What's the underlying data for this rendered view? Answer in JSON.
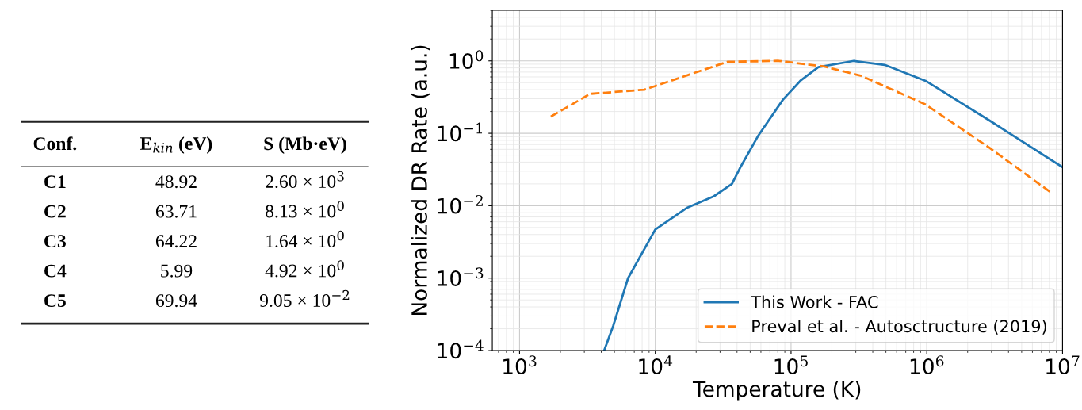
{
  "chart_data": [
    {
      "type": "other",
      "annotations": [
        "Conf.",
        "E$_{kin}$ (eV)",
        "S (Mb·eV)",
        "C1",
        "48.92",
        "2.60 × 10$^{3}$",
        "C2",
        "63.71",
        "8.13 × 10$^{0}$",
        "C3",
        "64.22",
        "1.64 × 10$^{0}$",
        "C4",
        "5.99",
        "4.92 × 10$^{0}$",
        "C5",
        "69.94",
        "9.05 × 10$^{−2}$"
      ]
    },
    {
      "type": "line",
      "xlabel": "Temperature (K)",
      "ylabel": "Normalized DR Rate (a.u.)",
      "log": "xy",
      "grid": true,
      "legend": "bottom right",
      "xlim": [
        630,
        10000000
      ],
      "ylim": [
        0.0001,
        5
      ],
      "xticks": [
        {
          "value": 1000,
          "label": "10$^{3}$"
        },
        {
          "value": 10000,
          "label": "10$^{4}$"
        },
        {
          "value": 100000,
          "label": "10$^{5}$"
        },
        {
          "value": 1000000,
          "label": "10$^{6}$"
        },
        {
          "value": 10000000,
          "label": "10$^{7}$"
        }
      ],
      "yticks": [
        {
          "value": 0.0001,
          "label": "10$^{−4}$"
        },
        {
          "value": 0.001,
          "label": "10$^{−3}$"
        },
        {
          "value": 0.01,
          "label": "10$^{−2}$"
        },
        {
          "value": 0.1,
          "label": "10$^{−1}$"
        },
        {
          "value": 1,
          "label": "10$^{0}$"
        }
      ],
      "series": [
        {
          "name": "This Work - FAC",
          "color": "#1f77b4",
          "line_style": "solid",
          "x": [
            4200,
            4900,
            6300,
            10000,
            17000,
            27000,
            36700,
            42000,
            57000,
            87000,
            117000,
            159000,
            290000,
            490000,
            980000,
            2900000,
            10000000
          ],
          "values": [
            0.0001,
            0.00022,
            0.001,
            0.0047,
            0.0093,
            0.0135,
            0.02,
            0.033,
            0.091,
            0.29,
            0.53,
            0.82,
            1.0,
            0.88,
            0.53,
            0.15,
            0.034
          ]
        },
        {
          "name": "Preval et al. - Autosctructure (2019)",
          "color": "#ff7f0e",
          "line_style": "dashed",
          "x": [
            1700,
            3300,
            8300,
            34000,
            81000,
            174000,
            330000,
            980000,
            2900000,
            8300000
          ],
          "values": [
            0.17,
            0.35,
            0.4,
            0.97,
            1.0,
            0.84,
            0.62,
            0.25,
            0.063,
            0.015
          ]
        }
      ]
    }
  ]
}
